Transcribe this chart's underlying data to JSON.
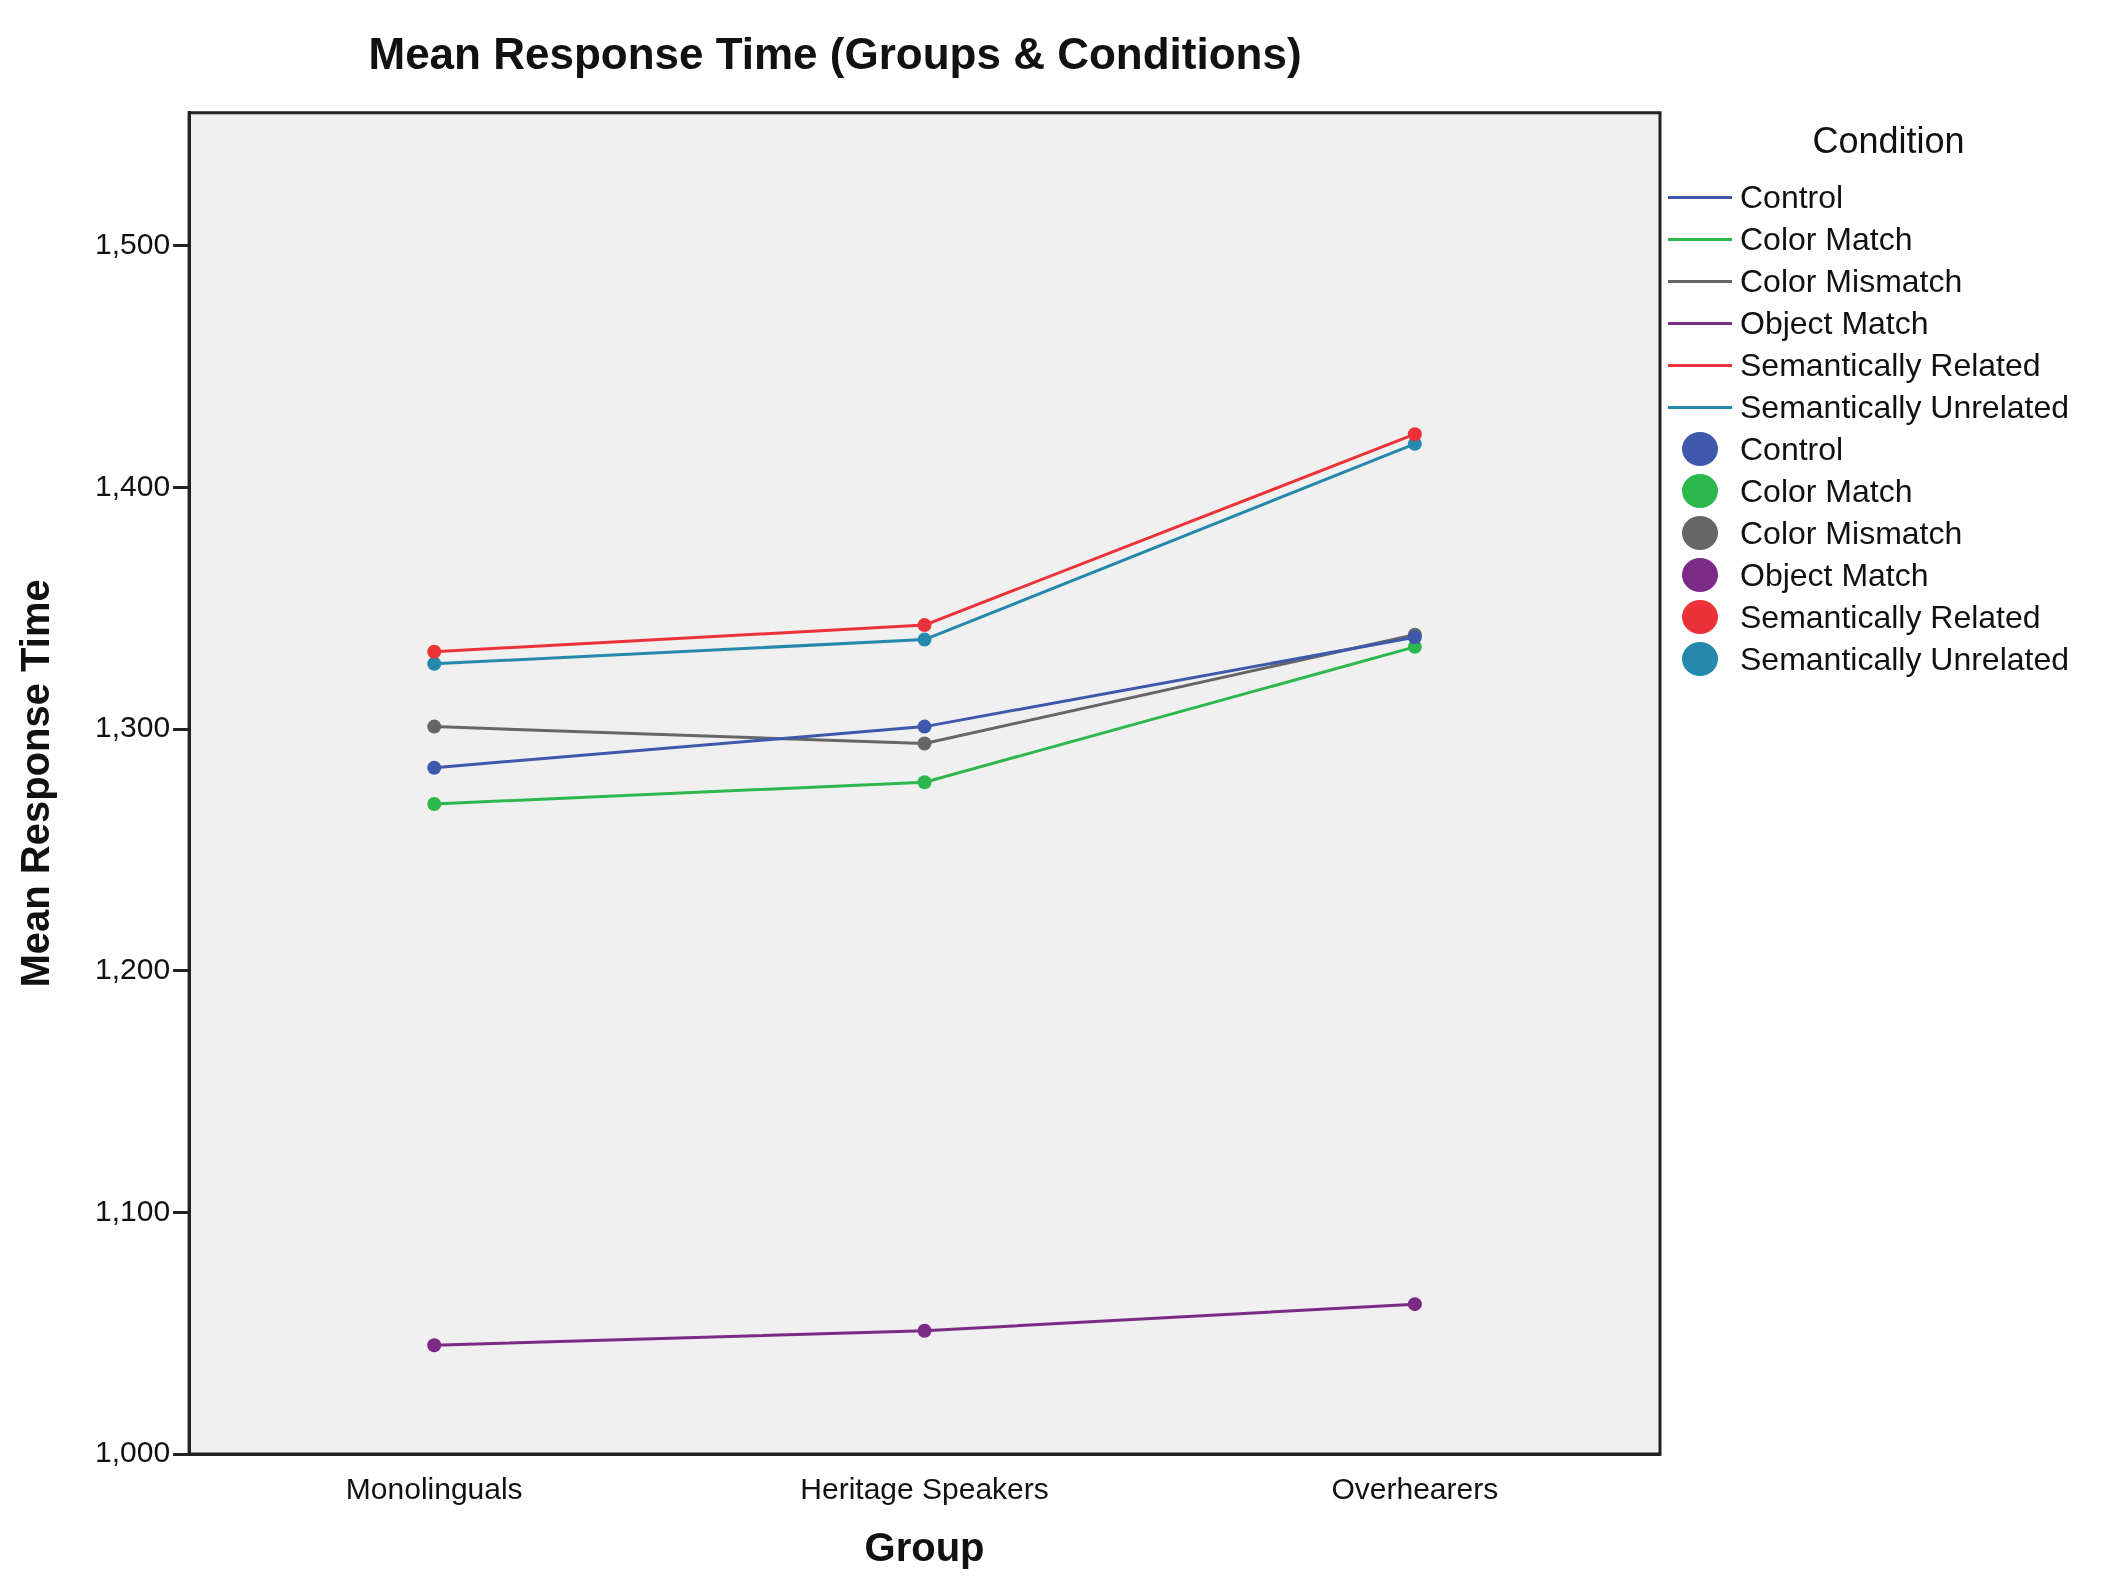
{
  "chart_data": {
    "type": "line",
    "title": "Mean Response Time (Groups & Conditions)",
    "xlabel": "Group",
    "ylabel": "Mean Response Time",
    "legend_title": "Condition",
    "categories": [
      "Monolinguals",
      "Heritage Speakers",
      "Overhearers"
    ],
    "ylim": [
      1000,
      1555
    ],
    "yticks": [
      {
        "value": 1000,
        "label": "1,000"
      },
      {
        "value": 1100,
        "label": "1,100"
      },
      {
        "value": 1200,
        "label": "1,200"
      },
      {
        "value": 1300,
        "label": "1,300"
      },
      {
        "value": 1400,
        "label": "1,400"
      },
      {
        "value": 1500,
        "label": "1,500"
      }
    ],
    "grid": false,
    "legend": "right",
    "marker": "circle",
    "line_style": "solid",
    "series": [
      {
        "name": "Control",
        "color": "#3e58ac",
        "values": [
          1284,
          1301,
          1338
        ]
      },
      {
        "name": "Color Match",
        "color": "#2db84d",
        "values": [
          1269,
          1278,
          1334
        ]
      },
      {
        "name": "Color Mismatch",
        "color": "#666666",
        "values": [
          1301,
          1294,
          1339
        ]
      },
      {
        "name": "Object Match",
        "color": "#7b2a86",
        "values": [
          1045,
          1051,
          1062
        ]
      },
      {
        "name": "Semantically Related",
        "color": "#ec3238",
        "values": [
          1332,
          1343,
          1422
        ]
      },
      {
        "name": "Semantically Unrelated",
        "color": "#2489ad",
        "values": [
          1327,
          1337,
          1418
        ]
      }
    ]
  }
}
